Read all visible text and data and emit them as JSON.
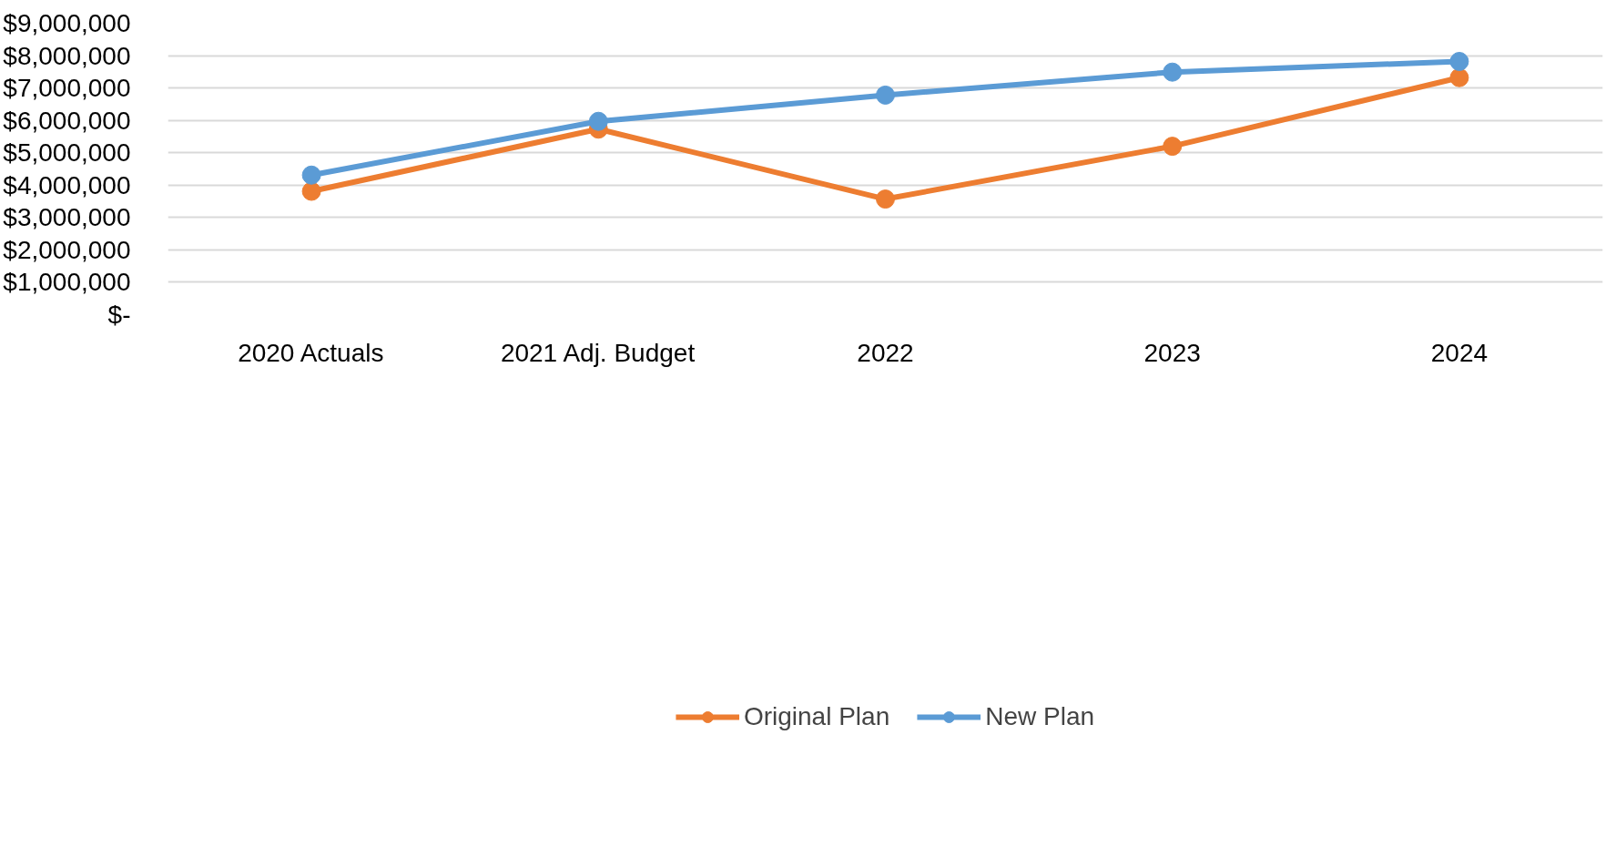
{
  "chart_data": {
    "type": "line",
    "categories": [
      "2020 Actuals",
      "2021 Adj. Budget",
      "2022",
      "2023",
      "2024"
    ],
    "series": [
      {
        "name": "Original Plan",
        "color": "#ed7d31",
        "values": [
          3810000,
          5730000,
          3570000,
          5200000,
          7320000
        ]
      },
      {
        "name": "New Plan",
        "color": "#5b9bd5",
        "values": [
          4310000,
          5970000,
          6780000,
          7490000,
          7820000
        ]
      }
    ],
    "ylim": [
      0,
      9000000
    ],
    "yticks": [
      {
        "value": 0,
        "label": "$-"
      },
      {
        "value": 1000000,
        "label": "$1,000,000"
      },
      {
        "value": 2000000,
        "label": "$2,000,000"
      },
      {
        "value": 3000000,
        "label": "$3,000,000"
      },
      {
        "value": 4000000,
        "label": "$4,000,000"
      },
      {
        "value": 5000000,
        "label": "$5,000,000"
      },
      {
        "value": 6000000,
        "label": "$6,000,000"
      },
      {
        "value": 7000000,
        "label": "$7,000,000"
      },
      {
        "value": 8000000,
        "label": "$8,000,000"
      },
      {
        "value": 9000000,
        "label": "$9,000,000"
      }
    ],
    "grid": "y",
    "legend": "bottom",
    "marker": "circle",
    "line_style": "solid"
  }
}
